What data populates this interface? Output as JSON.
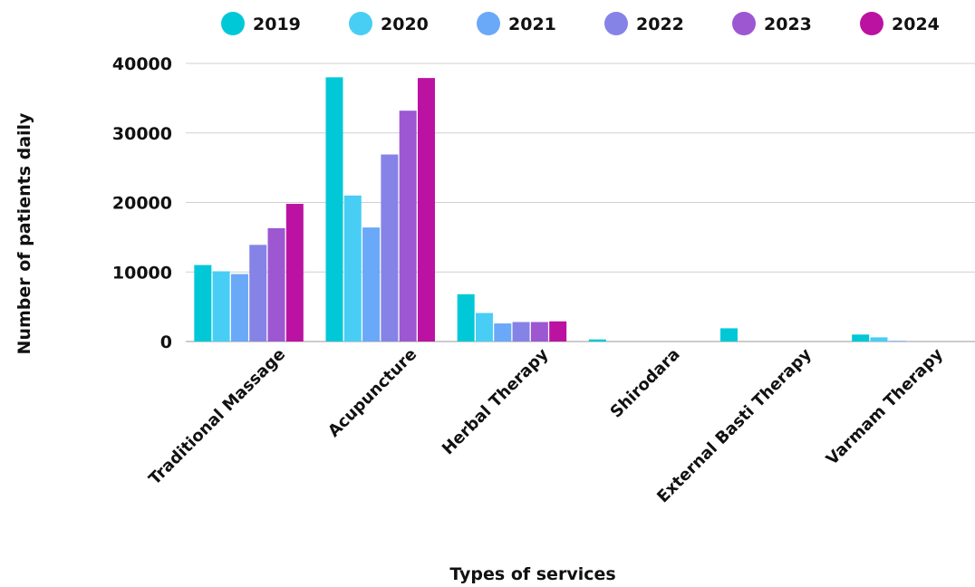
{
  "chart_data": {
    "type": "bar",
    "title": "",
    "xlabel": "Types of services",
    "ylabel": "Number of patients daily",
    "ylim": [
      0,
      40000
    ],
    "yticks": [
      0,
      10000,
      20000,
      30000,
      40000
    ],
    "grid": true,
    "legend_position": "top",
    "categories": [
      "Traditional Massage",
      "Acupuncture",
      "Herbal Therapy",
      "Shirodara",
      "External Basti Therapy",
      "Varmam Therapy"
    ],
    "series": [
      {
        "name": "2019",
        "color": "#00c8d7",
        "values": [
          11000,
          38000,
          6800,
          300,
          1900,
          1000
        ]
      },
      {
        "name": "2020",
        "color": "#48cef5",
        "values": [
          10100,
          21000,
          4100,
          0,
          0,
          600
        ]
      },
      {
        "name": "2021",
        "color": "#6aa8f8",
        "values": [
          9700,
          16400,
          2600,
          0,
          0,
          100
        ]
      },
      {
        "name": "2022",
        "color": "#8583e6",
        "values": [
          13900,
          26900,
          2800,
          0,
          0,
          0
        ]
      },
      {
        "name": "2023",
        "color": "#9c57d1",
        "values": [
          16300,
          33200,
          2800,
          0,
          0,
          0
        ]
      },
      {
        "name": "2024",
        "color": "#bc12a2",
        "values": [
          19800,
          37900,
          2900,
          0,
          0,
          0
        ]
      }
    ]
  }
}
